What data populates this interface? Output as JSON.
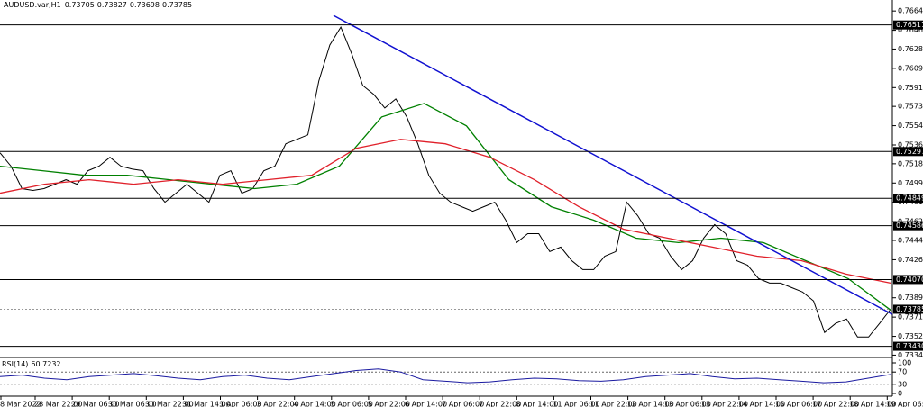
{
  "chart_data": {
    "type": "line",
    "title": "AUDUSD.var,H1",
    "ohlc": [
      0.73705,
      0.73827,
      0.73698,
      0.73785
    ],
    "series": [
      {
        "color": "#000000",
        "values": [
          0.75285,
          0.75156,
          0.74941,
          0.74924,
          0.74941,
          0.74984,
          0.75027,
          0.74984,
          0.75113,
          0.75156,
          0.75242,
          0.75156,
          0.7513,
          0.75113,
          0.74941,
          0.74811,
          0.74897,
          0.74984,
          0.74897,
          0.74811,
          0.75069,
          0.75113,
          0.74897,
          0.74941,
          0.75113,
          0.75156,
          0.75371,
          0.75414,
          0.75457,
          0.75973,
          0.76318,
          0.7649,
          0.76232,
          0.7593,
          0.75844,
          0.75715,
          0.75801,
          0.75629,
          0.75371,
          0.75069,
          0.74897,
          0.74811,
          0.74768,
          0.74725,
          0.74768,
          0.74811,
          0.74639,
          0.74424,
          0.7451,
          0.7451,
          0.74338,
          0.74381,
          0.74251,
          0.74165,
          0.74165,
          0.74294,
          0.74338,
          0.74811,
          0.74682,
          0.7451,
          0.74467,
          0.74294,
          0.74165,
          0.74251,
          0.74467,
          0.74596,
          0.7451,
          0.74251,
          0.74208,
          0.74079,
          0.74036,
          0.74036,
          0.73993,
          0.7395,
          0.73864,
          0.73562,
          0.73649,
          0.73692,
          0.73519,
          0.73519,
          0.73649,
          0.73785
        ]
      },
      {
        "color": "#008000",
        "values": [
          0.75156,
          0.75113,
          0.75069,
          0.75069,
          0.75027,
          0.74984,
          0.74941,
          0.74984,
          0.75156,
          0.75629,
          0.75758,
          0.75543,
          0.75027,
          0.74768,
          0.74639,
          0.74467,
          0.74424,
          0.74467,
          0.74424,
          0.74251,
          0.74079,
          0.73778
        ]
      },
      {
        "color": "#e0202a",
        "values": [
          0.74897,
          0.74984,
          0.75027,
          0.74984,
          0.75027,
          0.74984,
          0.75027,
          0.75069,
          0.75328,
          0.75414,
          0.75371,
          0.75242,
          0.75027,
          0.74768,
          0.74553,
          0.74467,
          0.74381,
          0.74294,
          0.74251,
          0.74122,
          0.74036
        ]
      }
    ],
    "trendline": {
      "color": "#1010d0",
      "values": [
        0.76602,
        0.73736
      ]
    },
    "levels": [
      0.76511,
      0.75297,
      0.74849,
      0.74586,
      {
        "value": 0.7407,
        "label": "0.74070"
      },
      {
        "value": 0.7343,
        "label": "0.73430"
      }
    ],
    "current": 0.73785,
    "ylim": [
      0.7334,
      0.7675
    ],
    "yticks": [
      0.76645,
      {
        "value": 0.7646,
        "label": "0.76460"
      },
      {
        "value": 0.7628,
        "label": "0.76280"
      },
      0.76095,
      {
        "value": 0.7591,
        "label": "0.75910"
      },
      {
        "value": 0.7573,
        "label": "0.75730"
      },
      0.75545,
      {
        "value": 0.7536,
        "label": "0.75360"
      },
      {
        "value": 0.7518,
        "label": "0.75180"
      },
      0.74995,
      {
        "value": 0.7481,
        "label": "0.74810"
      },
      0.74626,
      0.74445,
      {
        "value": 0.7426,
        "label": "0.74260"
      },
      0.73895,
      {
        "value": 0.7371,
        "label": "0.73710"
      },
      0.73525,
      0.73345
    ],
    "xticks": [
      "8 Mar 2022",
      "28 Mar 22:00",
      "29 Mar 06:00",
      "30 Mar 06:00",
      "30 Mar 22:00",
      "31 Mar 14:00",
      "1 Apr 06:00",
      "3 Apr 22:00",
      "4 Apr 14:00",
      "5 Apr 06:00",
      "5 Apr 22:00",
      "6 Apr 14:00",
      "7 Apr 06:00",
      "7 Apr 22:00",
      "8 Apr 14:00",
      "11 Apr 06:00",
      "11 Apr 22:00",
      "12 Apr 14:00",
      "13 Apr 06:00",
      "13 Apr 22:00",
      "14 Apr 14:00",
      "15 Apr 06:00",
      "17 Apr 22:00",
      "18 Apr 14:00",
      "19 Apr 06:00"
    ],
    "rsi": {
      "title": "RSI(14)",
      "value": 60.7232,
      "color": "#1a1aa0",
      "ylim": [
        0,
        100
      ],
      "yticks": [
        100,
        70,
        30,
        0
      ],
      "levels": [
        70,
        30
      ],
      "values": [
        55,
        60,
        50,
        45,
        55,
        60,
        65,
        58,
        50,
        45,
        55,
        60,
        50,
        45,
        55,
        65,
        75,
        80,
        70,
        45,
        40,
        35,
        38,
        45,
        50,
        48,
        42,
        40,
        45,
        55,
        60,
        65,
        55,
        48,
        50,
        45,
        40,
        35,
        38,
        50,
        62
      ]
    }
  }
}
